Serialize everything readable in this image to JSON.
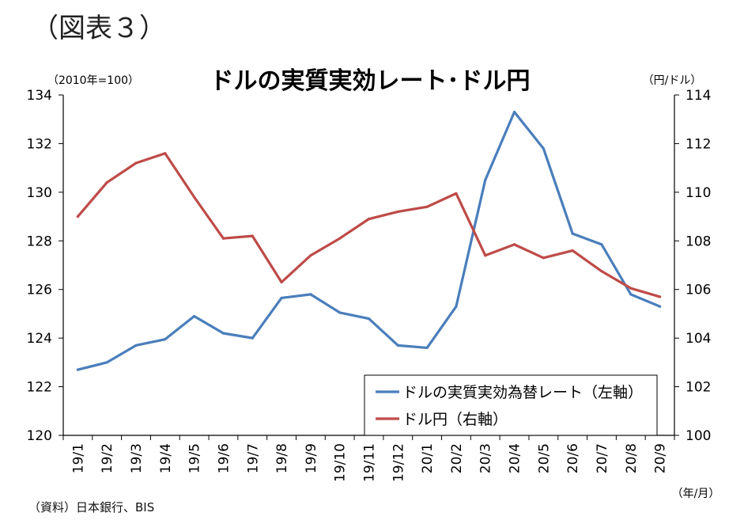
{
  "figure_label": "（図表３）",
  "source": "（資料）日本銀行、BIS",
  "colors": {
    "reer": "#4A7EBB",
    "usdjpy": "#BE4B48",
    "axis": "#000000"
  },
  "chart_data": {
    "type": "line",
    "title": "ドルの実質実効レート･ドル円",
    "left_unit": "（2010年=100）",
    "right_unit": "（円/ドル）",
    "x_unit": "（年/月）",
    "categories": [
      "19/1",
      "19/2",
      "19/3",
      "19/4",
      "19/5",
      "19/6",
      "19/7",
      "19/8",
      "19/9",
      "19/10",
      "19/11",
      "19/12",
      "20/1",
      "20/2",
      "20/3",
      "20/4",
      "20/5",
      "20/6",
      "20/7",
      "20/8",
      "20/9"
    ],
    "y_left": {
      "min": 120,
      "max": 134,
      "step": 2,
      "ticks": [
        "120",
        "122",
        "124",
        "126",
        "128",
        "130",
        "132",
        "134"
      ]
    },
    "y_right": {
      "min": 100,
      "max": 114,
      "step": 2,
      "ticks": [
        "100",
        "102",
        "104",
        "106",
        "108",
        "110",
        "112",
        "114"
      ]
    },
    "grid": false,
    "legend_position": "bottom-right",
    "series": [
      {
        "name": "ドルの実質実効為替レート（左軸）",
        "axis": "left",
        "values": [
          122.7,
          123.0,
          123.7,
          123.95,
          124.9,
          124.2,
          124.0,
          125.65,
          125.8,
          125.05,
          124.8,
          123.7,
          123.6,
          125.3,
          130.5,
          133.3,
          131.8,
          128.3,
          127.85,
          125.8,
          125.3
        ]
      },
      {
        "name": "ドル円（右軸）",
        "axis": "right",
        "values": [
          109.0,
          110.4,
          111.2,
          111.6,
          109.8,
          108.1,
          108.2,
          106.3,
          107.4,
          108.1,
          108.9,
          109.2,
          109.4,
          109.95,
          107.4,
          107.85,
          107.3,
          107.6,
          106.75,
          106.05,
          105.7
        ]
      }
    ]
  }
}
